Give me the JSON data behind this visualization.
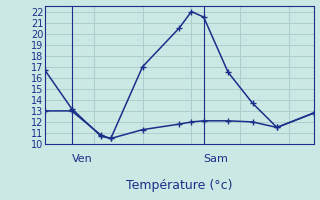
{
  "background_color": "#cce8e4",
  "grid_color": "#aacfcc",
  "line_color": "#1a2f8a",
  "axis_color": "#1a2f8a",
  "xlabel": "Température (°c)",
  "xlabel_fontsize": 9,
  "tick_label_fontsize": 7,
  "day_labels": [
    "Ven",
    "Sam"
  ],
  "day_label_fontsize": 8,
  "ylim": [
    10,
    22.5
  ],
  "yticks": [
    10,
    11,
    12,
    13,
    14,
    15,
    16,
    17,
    18,
    19,
    20,
    21,
    22
  ],
  "xlim": [
    0,
    11
  ],
  "x_ven": 1.1,
  "x_sam": 6.5,
  "series1_x": [
    0.0,
    1.1,
    2.3,
    2.7,
    4.0,
    5.5,
    6.0,
    6.5,
    7.5,
    8.5,
    9.5,
    11.0
  ],
  "series1_y": [
    16.7,
    13.2,
    10.7,
    10.5,
    17.0,
    20.5,
    22.0,
    21.5,
    16.5,
    13.7,
    11.5,
    12.8
  ],
  "series2_x": [
    0.0,
    1.1,
    2.3,
    2.7,
    4.0,
    5.5,
    6.0,
    6.5,
    7.5,
    8.5,
    9.5,
    11.0
  ],
  "series2_y": [
    13.0,
    13.0,
    10.8,
    10.5,
    11.3,
    11.8,
    12.0,
    12.1,
    12.1,
    12.0,
    11.5,
    12.8
  ]
}
